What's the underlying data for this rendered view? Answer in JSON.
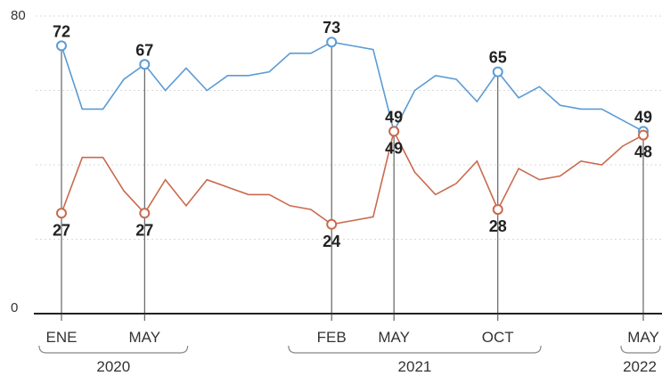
{
  "chart_data": {
    "type": "line",
    "ylim": [
      0,
      80
    ],
    "y_ticks": [
      "0",
      "80"
    ],
    "x_month_labels": [
      {
        "label": "ENE",
        "index": 0
      },
      {
        "label": "MAY",
        "index": 4
      },
      {
        "label": "FEB",
        "index": 13
      },
      {
        "label": "MAY",
        "index": 16
      },
      {
        "label": "OCT",
        "index": 21
      },
      {
        "label": "MAY",
        "index": 28
      }
    ],
    "years": [
      {
        "label": "2020",
        "from": 0,
        "to": 5
      },
      {
        "label": "2021",
        "from": 12,
        "to": 22
      },
      {
        "label": "2022",
        "from": 28,
        "to": 29
      }
    ],
    "x": [
      "2020-01",
      "2020-02",
      "2020-03",
      "2020-04",
      "2020-05",
      "2020-06",
      "2020-07",
      "2020-08",
      "2020-09",
      "2020-10",
      "2020-11",
      "2020-12",
      "2021-01",
      "2021-02",
      "2021-03",
      "2021-04",
      "2021-05",
      "2021-06",
      "2021-07",
      "2021-08",
      "2021-09",
      "2021-10",
      "2021-11",
      "2021-12",
      "2022-01",
      "2022-02",
      "2022-03",
      "2022-04",
      "2022-05"
    ],
    "series": [
      {
        "color": "#5b9bd5",
        "values": [
          72,
          55,
          55,
          63,
          67,
          60,
          66,
          60,
          64,
          64,
          65,
          70,
          70,
          73,
          72,
          71,
          49,
          60,
          64,
          63,
          57,
          65,
          58,
          61,
          56,
          55,
          55,
          52,
          49
        ],
        "labels": [
          {
            "index": 0,
            "text": "72",
            "pos": "above"
          },
          {
            "index": 4,
            "text": "67",
            "pos": "above"
          },
          {
            "index": 13,
            "text": "73",
            "pos": "above"
          },
          {
            "index": 16,
            "text": "49",
            "pos": "above"
          },
          {
            "index": 21,
            "text": "65",
            "pos": "above"
          },
          {
            "index": 28,
            "text": "49",
            "pos": "above"
          }
        ]
      },
      {
        "color": "#c96a4f",
        "values": [
          27,
          42,
          42,
          33,
          27,
          36,
          29,
          36,
          34,
          32,
          32,
          29,
          28,
          24,
          25,
          26,
          49,
          38,
          32,
          35,
          41,
          28,
          39,
          36,
          37,
          41,
          40,
          45,
          48
        ],
        "labels": [
          {
            "index": 0,
            "text": "27",
            "pos": "below"
          },
          {
            "index": 4,
            "text": "27",
            "pos": "below"
          },
          {
            "index": 13,
            "text": "24",
            "pos": "below"
          },
          {
            "index": 16,
            "text": "49",
            "pos": "below"
          },
          {
            "index": 21,
            "text": "28",
            "pos": "below"
          },
          {
            "index": 28,
            "text": "48",
            "pos": "below"
          }
        ]
      }
    ]
  }
}
